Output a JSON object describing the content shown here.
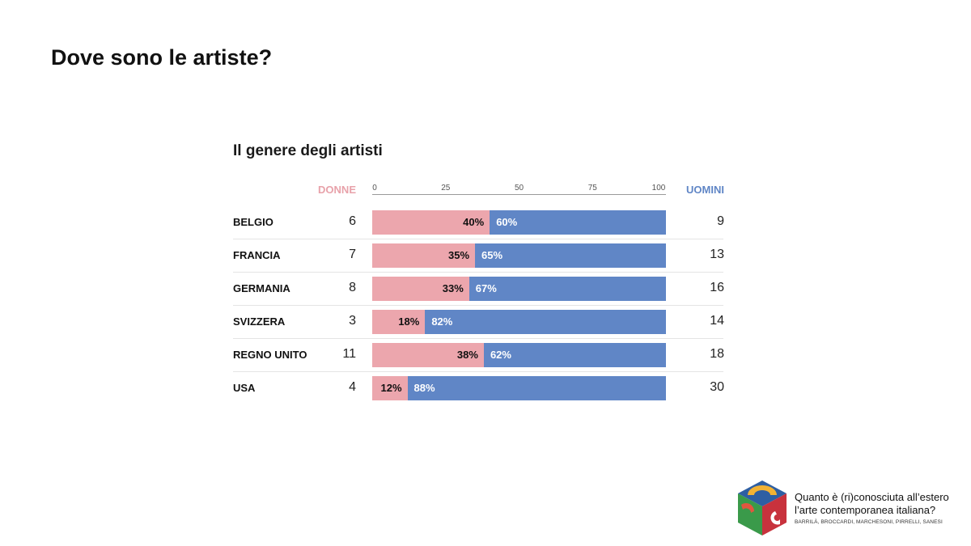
{
  "page": {
    "title": "Dove sono le artiste?"
  },
  "chart_data": {
    "type": "bar",
    "stacked": true,
    "orientation": "horizontal",
    "title": "Il genere degli artisti",
    "left_header": "DONNE",
    "right_header": "UOMINI",
    "axis_ticks": [
      "0",
      "25",
      "50",
      "75",
      "100"
    ],
    "xlim": [
      0,
      100
    ],
    "categories": [
      "BELGIO",
      "FRANCIA",
      "GERMANIA",
      "SVIZZERA",
      "REGNO UNITO",
      "USA"
    ],
    "donne_counts": [
      "6",
      "7",
      "8",
      "3",
      "11",
      "4"
    ],
    "uomini_counts": [
      "9",
      "13",
      "16",
      "14",
      "18",
      "30"
    ],
    "series": [
      {
        "name": "Donne",
        "color": "#eca6ad",
        "values": [
          40,
          35,
          33,
          18,
          38,
          12
        ],
        "labels": [
          "40%",
          "35%",
          "33%",
          "18%",
          "38%",
          "12%"
        ]
      },
      {
        "name": "Uomini",
        "color": "#6086c6",
        "values": [
          60,
          65,
          67,
          82,
          62,
          88
        ],
        "labels": [
          "60%",
          "65%",
          "67%",
          "82%",
          "62%",
          "88%"
        ]
      }
    ]
  },
  "logo": {
    "line1": "Quanto è (ri)conosciuta all’estero",
    "line2": "l’arte contemporanea italiana?",
    "authors": "BARRILÀ, BROCCARDI, MARCHESONI, PIRRELLI, SANESI"
  }
}
